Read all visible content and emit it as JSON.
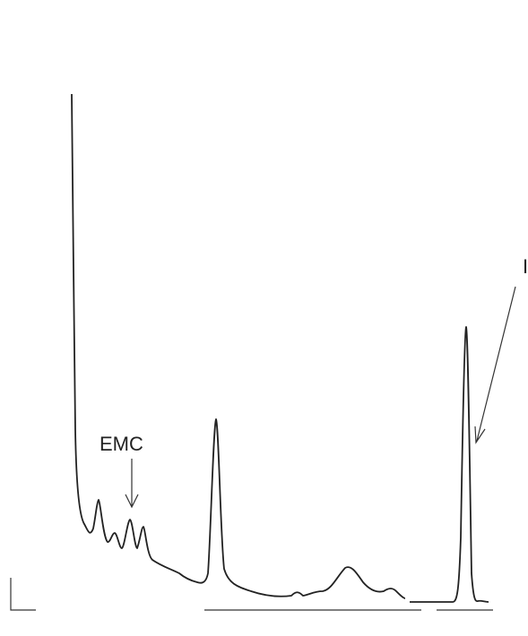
{
  "labels": [
    "EMC",
    "IS"
  ]
}
